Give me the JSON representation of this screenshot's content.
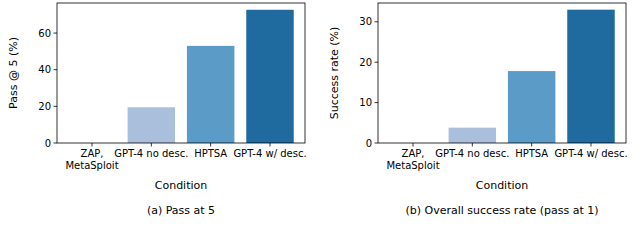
{
  "chart_data": [
    {
      "type": "bar",
      "title": "(a) Pass at 5",
      "x_label": "Condition",
      "y_label": "Pass @ 5 (%)",
      "categories": [
        "ZAP,\nMetaSploit",
        "GPT-4 no desc.",
        "HPTSA",
        "GPT-4 w/ desc."
      ],
      "values": [
        0,
        19.5,
        53,
        72.7
      ],
      "colors": [
        "#d4e1f0",
        "#aabfdc",
        "#5b9bc8",
        "#1f6a9e"
      ],
      "ylim": [
        0,
        76.4
      ],
      "yticks": [
        0,
        20,
        40,
        60
      ],
      "grid": false
    },
    {
      "type": "bar",
      "title": "(b) Overall success rate (pass at 1)",
      "x_label": "Condition",
      "y_label": "Success rate (%)",
      "categories": [
        "ZAP,\nMetaSploit",
        "GPT-4 no desc.",
        "HPTSA",
        "GPT-4 w/ desc."
      ],
      "values": [
        0,
        3.8,
        17.8,
        33
      ],
      "colors": [
        "#d4e1f0",
        "#aabfdc",
        "#5b9bc8",
        "#1f6a9e"
      ],
      "ylim": [
        0,
        34.65
      ],
      "yticks": [
        0,
        10,
        20,
        30
      ],
      "grid": false
    }
  ]
}
